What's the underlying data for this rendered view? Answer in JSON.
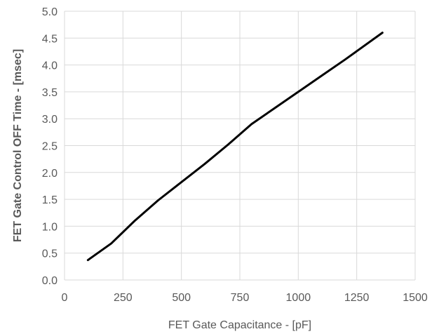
{
  "chart_data": {
    "type": "line",
    "xlabel": "FET Gate Capacitance - [pF]",
    "ylabel": "FET Gate Control OFF Time - [msec]",
    "xlim": [
      0,
      1500
    ],
    "ylim": [
      0.0,
      5.0
    ],
    "x_ticks": [
      "0",
      "250",
      "500",
      "750",
      "1000",
      "1250",
      "1500"
    ],
    "y_ticks": [
      "0.0",
      "0.5",
      "1.0",
      "1.5",
      "2.0",
      "2.5",
      "3.0",
      "3.5",
      "4.0",
      "4.5",
      "5.0"
    ],
    "grid": true,
    "legend": "none",
    "series": [
      {
        "x": [
          100,
          200,
          300,
          400,
          500,
          600,
          700,
          800,
          900,
          1000,
          1100,
          1200,
          1360
        ],
        "y": [
          0.37,
          0.68,
          1.1,
          1.48,
          1.82,
          2.16,
          2.52,
          2.9,
          3.2,
          3.5,
          3.8,
          4.1,
          4.6
        ],
        "color": "#000000"
      }
    ]
  }
}
